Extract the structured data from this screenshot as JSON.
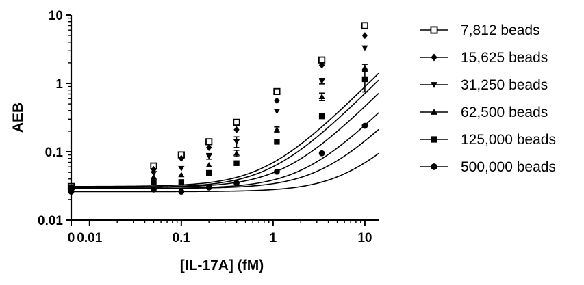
{
  "chart_data": {
    "type": "scatter",
    "title": "",
    "xlabel": "[IL-17A] (fM)",
    "ylabel": "AEB",
    "x_scale": "log",
    "y_scale": "log",
    "x_zero_tick": "0",
    "x_ticks": [
      0.01,
      0.1,
      1,
      10
    ],
    "x_tick_labels": [
      "0",
      "0.01",
      "0.1",
      "1",
      "10"
    ],
    "y_ticks": [
      0.01,
      0.1,
      1,
      10
    ],
    "y_tick_labels": [
      "0.01",
      "0.1",
      "1",
      "10"
    ],
    "ylim": [
      0.01,
      10
    ],
    "grid": false,
    "legend_position": "right",
    "x": [
      0,
      0.05,
      0.1,
      0.2,
      0.4,
      1.1,
      3.4,
      10
    ],
    "series": [
      {
        "name": "7,812 beads",
        "marker": "square-open",
        "fit_scale": 0.012,
        "values": [
          0.031,
          0.062,
          0.09,
          0.14,
          0.27,
          0.76,
          2.2,
          7.0
        ],
        "errors": [
          0.002,
          0.004,
          0.005,
          0.008,
          0.02,
          0.05,
          0.2,
          0.4
        ]
      },
      {
        "name": "15,625 beads",
        "marker": "diamond",
        "fit_scale": 0.0095,
        "values": [
          0.03,
          0.055,
          0.08,
          0.115,
          0.21,
          0.56,
          1.85,
          5.0
        ],
        "errors": [
          0.002,
          0.004,
          0.005,
          0.008,
          0.015,
          0.04,
          0.15,
          0.3
        ]
      },
      {
        "name": "31,250 beads",
        "marker": "triangle-down",
        "fit_scale": 0.006,
        "values": [
          0.03,
          0.048,
          0.057,
          0.086,
          0.14,
          0.39,
          1.08,
          3.3
        ],
        "errors": [
          0.002,
          0.004,
          0.005,
          0.008,
          0.025,
          0.03,
          0.1,
          0.3
        ]
      },
      {
        "name": "62,500 beads",
        "marker": "triangle-up",
        "fit_scale": 0.003,
        "values": [
          0.029,
          0.043,
          0.046,
          0.064,
          0.095,
          0.21,
          0.64,
          1.7
        ],
        "errors": [
          0.002,
          0.003,
          0.004,
          0.005,
          0.01,
          0.02,
          0.08,
          0.2
        ]
      },
      {
        "name": "125,000 beads",
        "marker": "square",
        "fit_scale": 0.0016,
        "values": [
          0.029,
          0.036,
          0.036,
          0.049,
          0.068,
          0.14,
          0.33,
          1.15
        ],
        "errors": [
          0.002,
          0.003,
          0.003,
          0.004,
          0.005,
          0.01,
          0.03,
          0.4
        ]
      },
      {
        "name": "500,000 beads",
        "marker": "circle",
        "fit_scale": 0.0006,
        "values": [
          0.026,
          0.028,
          0.026,
          0.03,
          0.035,
          0.051,
          0.095,
          0.24
        ],
        "errors": [
          0.001,
          0.002,
          0.002,
          0.002,
          0.002,
          0.003,
          0.006,
          0.015
        ]
      }
    ]
  }
}
